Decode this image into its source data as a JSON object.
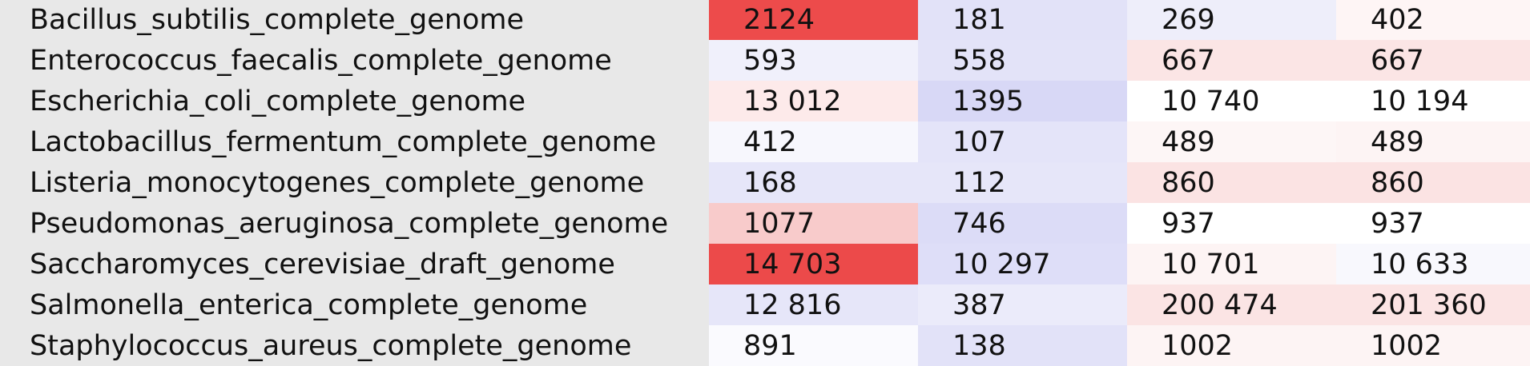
{
  "rows": [
    {
      "name": "Bacillus_subtilis_complete_genome",
      "cells": [
        {
          "v": "2124",
          "c": "#ed4b4b"
        },
        {
          "v": "181",
          "c": "#e2e2f8"
        },
        {
          "v": "269",
          "c": "#eeeefa"
        },
        {
          "v": "402",
          "c": "#fef5f5"
        }
      ]
    },
    {
      "name": "Enterococcus_faecalis_complete_genome",
      "cells": [
        {
          "v": "593",
          "c": "#f0f0fb"
        },
        {
          "v": "558",
          "c": "#e3e3f8"
        },
        {
          "v": "667",
          "c": "#fbe5e5"
        },
        {
          "v": "667",
          "c": "#fbe5e5"
        }
      ]
    },
    {
      "name": "Escherichia_coli_complete_genome",
      "cells": [
        {
          "v": "13 012",
          "c": "#fdeaea"
        },
        {
          "v": "1395",
          "c": "#d8d8f6"
        },
        {
          "v": "10 740",
          "c": "#ffffff"
        },
        {
          "v": "10 194",
          "c": "#ffffff"
        }
      ]
    },
    {
      "name": "Lactobacillus_fermentum_complete_genome",
      "cells": [
        {
          "v": "412",
          "c": "#f7f7fd"
        },
        {
          "v": "107",
          "c": "#e4e4f9"
        },
        {
          "v": "489",
          "c": "#fdf6f6"
        },
        {
          "v": "489",
          "c": "#fdf4f4"
        }
      ]
    },
    {
      "name": "Listeria_monocytogenes_complete_genome",
      "cells": [
        {
          "v": "168",
          "c": "#e6e6f9"
        },
        {
          "v": "112",
          "c": "#e6e6f9"
        },
        {
          "v": "860",
          "c": "#fbe3e3"
        },
        {
          "v": "860",
          "c": "#fbe3e3"
        }
      ]
    },
    {
      "name": "Pseudomonas_aeruginosa_complete_genome",
      "cells": [
        {
          "v": "1077",
          "c": "#f8cbcb"
        },
        {
          "v": "746",
          "c": "#dcdcf7"
        },
        {
          "v": "937",
          "c": "#ffffff"
        },
        {
          "v": "937",
          "c": "#ffffff"
        }
      ]
    },
    {
      "name": "Saccharomyces_cerevisiae_draft_genome",
      "cells": [
        {
          "v": "14 703",
          "c": "#ec4a4a"
        },
        {
          "v": "10 297",
          "c": "#dedef8"
        },
        {
          "v": "10 701",
          "c": "#fdf4f4"
        },
        {
          "v": "10 633",
          "c": "#f8f8fd"
        }
      ]
    },
    {
      "name": "Salmonella_enterica_complete_genome",
      "cells": [
        {
          "v": "12 816",
          "c": "#e6e6f9"
        },
        {
          "v": "387",
          "c": "#ebebfa"
        },
        {
          "v": "200 474",
          "c": "#fbe4e4"
        },
        {
          "v": "201 360",
          "c": "#fbe4e4"
        }
      ]
    },
    {
      "name": "Staphylococcus_aureus_complete_genome",
      "cells": [
        {
          "v": "891",
          "c": "#fafafe"
        },
        {
          "v": "138",
          "c": "#e2e2f8"
        },
        {
          "v": "1002",
          "c": "#fdf4f4"
        },
        {
          "v": "1002",
          "c": "#fdf4f4"
        }
      ]
    }
  ]
}
